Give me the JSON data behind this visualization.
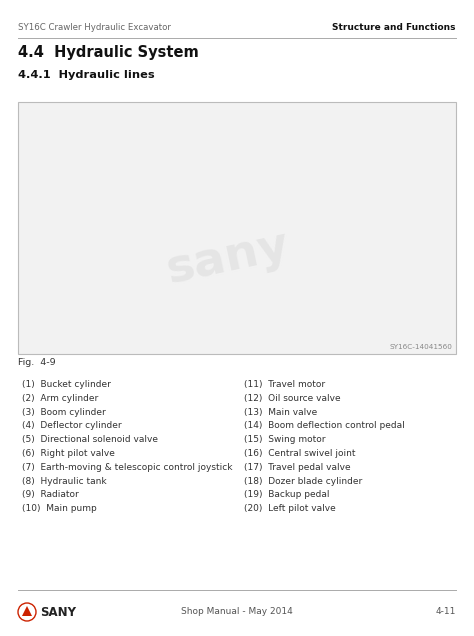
{
  "header_left": "SY16C Crawler Hydraulic Excavator",
  "header_right": "Structure and Functions",
  "section_title": "4.4  Hydraulic System",
  "subsection_title": "4.4.1  Hydraulic lines",
  "fig_label": "Fig.  4-9",
  "fig_code": "SY16C-14041560",
  "parts_left": [
    "(1)  Bucket cylinder",
    "(2)  Arm cylinder",
    "(3)  Boom cylinder",
    "(4)  Deflector cylinder",
    "(5)  Directional solenoid valve",
    "(6)  Right pilot valve",
    "(7)  Earth-moving & telescopic control joystick",
    "(8)  Hydraulic tank",
    "(9)  Radiator",
    "(10)  Main pump"
  ],
  "parts_right": [
    "(11)  Travel motor",
    "(12)  Oil source valve",
    "(13)  Main valve",
    "(14)  Boom deflection control pedal",
    "(15)  Swing motor",
    "(16)  Central swivel joint",
    "(17)  Travel pedal valve",
    "(18)  Dozer blade cylinder",
    "(19)  Backup pedal",
    "(20)  Left pilot valve"
  ],
  "footer_center": "Shop Manual - May 2014",
  "footer_right": "4-11",
  "header_line_color": "#aaaaaa",
  "footer_line_color": "#aaaaaa",
  "bg_color": "#ffffff",
  "text_color": "#333333",
  "header_text_color": "#666666",
  "header_bold_color": "#111111",
  "watermark_text": "sany",
  "watermark_color": "#d8d8d8",
  "img_box_edge": "#bbbbbb",
  "img_box_face": "#f2f2f2"
}
